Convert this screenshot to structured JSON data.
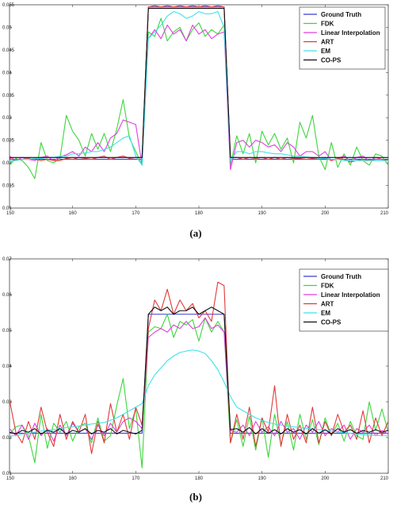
{
  "chart_data": [
    {
      "type": "line",
      "caption": "(a)",
      "xlim": [
        150,
        210
      ],
      "ylim": [
        0.01,
        0.055
      ],
      "xticks": [
        "150",
        "160",
        "170",
        "180",
        "190",
        "200",
        "210"
      ],
      "yticks": [
        "0.01",
        "0.015",
        "0.02",
        "0.025",
        "0.03",
        "0.035",
        "0.04",
        "0.045",
        "0.05",
        "0.055"
      ],
      "grid": false,
      "legend_position": "top-right",
      "x": [
        150,
        151,
        152,
        153,
        154,
        155,
        156,
        157,
        158,
        159,
        160,
        161,
        162,
        163,
        164,
        165,
        166,
        167,
        168,
        169,
        170,
        171,
        172,
        173,
        174,
        175,
        176,
        177,
        178,
        179,
        180,
        181,
        182,
        183,
        184,
        185,
        186,
        187,
        188,
        189,
        190,
        191,
        192,
        193,
        194,
        195,
        196,
        197,
        198,
        199,
        200,
        201,
        202,
        203,
        204,
        205,
        206,
        207,
        208,
        209,
        210
      ],
      "series": [
        {
          "name": "Ground Truth",
          "color": "#3b3bd6",
          "values": [
            0.0208,
            0.0208,
            0.0208,
            0.0208,
            0.0208,
            0.0208,
            0.0208,
            0.0208,
            0.0208,
            0.0208,
            0.0208,
            0.0208,
            0.0208,
            0.0208,
            0.0208,
            0.0208,
            0.0208,
            0.0208,
            0.0208,
            0.0208,
            0.0208,
            0.0208,
            0.0545,
            0.0545,
            0.0545,
            0.0545,
            0.0545,
            0.0545,
            0.0545,
            0.0545,
            0.0545,
            0.0545,
            0.0545,
            0.0545,
            0.0545,
            0.0208,
            0.0208,
            0.0208,
            0.0208,
            0.0208,
            0.0208,
            0.0208,
            0.0208,
            0.0208,
            0.0208,
            0.0208,
            0.0208,
            0.0208,
            0.0208,
            0.0208,
            0.0208,
            0.0208,
            0.0208,
            0.0208,
            0.0208,
            0.0208,
            0.0208,
            0.0208,
            0.0208,
            0.0208,
            0.0208
          ]
        },
        {
          "name": "FDK",
          "color": "#3cd63c",
          "values": [
            0.0195,
            0.021,
            0.0205,
            0.019,
            0.0165,
            0.0245,
            0.0205,
            0.02,
            0.021,
            0.0305,
            0.027,
            0.025,
            0.0215,
            0.0265,
            0.023,
            0.0265,
            0.0225,
            0.0275,
            0.034,
            0.0255,
            0.0225,
            0.0195,
            0.049,
            0.048,
            0.052,
            0.047,
            0.049,
            0.05,
            0.047,
            0.0495,
            0.051,
            0.048,
            0.0495,
            0.0485,
            0.0505,
            0.0195,
            0.026,
            0.022,
            0.0265,
            0.02,
            0.027,
            0.024,
            0.0265,
            0.023,
            0.0255,
            0.02,
            0.029,
            0.0255,
            0.0305,
            0.0215,
            0.0185,
            0.0245,
            0.019,
            0.022,
            0.0195,
            0.0235,
            0.0205,
            0.0195,
            0.022,
            0.0215,
            0.0195
          ]
        },
        {
          "name": "Linear Interpolation",
          "color": "#e040e0",
          "values": [
            0.0215,
            0.0205,
            0.0212,
            0.0208,
            0.0205,
            0.0212,
            0.0215,
            0.0205,
            0.0213,
            0.0218,
            0.0225,
            0.0215,
            0.0235,
            0.0225,
            0.0245,
            0.0225,
            0.0255,
            0.0265,
            0.0295,
            0.029,
            0.0285,
            0.0195,
            0.0475,
            0.0495,
            0.0475,
            0.0505,
            0.0485,
            0.0495,
            0.047,
            0.0505,
            0.0485,
            0.0495,
            0.0475,
            0.0485,
            0.049,
            0.0185,
            0.0245,
            0.025,
            0.0235,
            0.025,
            0.0245,
            0.0235,
            0.024,
            0.0225,
            0.0245,
            0.0235,
            0.0215,
            0.0225,
            0.0225,
            0.0215,
            0.0225,
            0.0205,
            0.021,
            0.0215,
            0.0205,
            0.0212,
            0.0215,
            0.0205,
            0.0212,
            0.0208,
            0.0205
          ]
        },
        {
          "name": "ART",
          "color": "#e03a3a",
          "values": [
            0.021,
            0.0205,
            0.0208,
            0.021,
            0.0208,
            0.0205,
            0.0208,
            0.0205,
            0.0205,
            0.021,
            0.0208,
            0.0212,
            0.021,
            0.0208,
            0.0212,
            0.0215,
            0.0208,
            0.0212,
            0.0215,
            0.021,
            0.0212,
            0.0212,
            0.0545,
            0.0548,
            0.0545,
            0.0548,
            0.0545,
            0.0548,
            0.0545,
            0.0548,
            0.0545,
            0.0548,
            0.0545,
            0.0548,
            0.0545,
            0.0212,
            0.0212,
            0.0208,
            0.0212,
            0.021,
            0.0212,
            0.0208,
            0.0212,
            0.0208,
            0.0212,
            0.021,
            0.021,
            0.0208,
            0.021,
            0.0208,
            0.0212,
            0.0205,
            0.021,
            0.0208,
            0.0202,
            0.0205,
            0.0208,
            0.0205,
            0.0208,
            0.0208,
            0.0205
          ]
        },
        {
          "name": "EM",
          "color": "#3ee3e8",
          "values": [
            0.0205,
            0.0205,
            0.0208,
            0.0208,
            0.021,
            0.021,
            0.0212,
            0.0212,
            0.0215,
            0.0215,
            0.022,
            0.022,
            0.0222,
            0.0225,
            0.0225,
            0.023,
            0.0235,
            0.0245,
            0.0255,
            0.026,
            0.0215,
            0.0195,
            0.0475,
            0.049,
            0.0505,
            0.0525,
            0.0535,
            0.053,
            0.052,
            0.0525,
            0.0535,
            0.053,
            0.053,
            0.0535,
            0.05,
            0.0205,
            0.0225,
            0.0225,
            0.022,
            0.0225,
            0.0225,
            0.0222,
            0.022,
            0.022,
            0.0218,
            0.0215,
            0.0215,
            0.0213,
            0.0212,
            0.021,
            0.021,
            0.0208,
            0.0208,
            0.0205,
            0.0205,
            0.0205,
            0.0205,
            0.0205,
            0.0205,
            0.0205,
            0.0205
          ]
        },
        {
          "name": "CO-PS",
          "color": "#111111",
          "values": [
            0.0212,
            0.0212,
            0.0212,
            0.0212,
            0.0212,
            0.0212,
            0.0212,
            0.0212,
            0.0212,
            0.0212,
            0.0212,
            0.0212,
            0.0212,
            0.0212,
            0.0212,
            0.0212,
            0.0212,
            0.0212,
            0.0212,
            0.0212,
            0.0212,
            0.0212,
            0.0542,
            0.0542,
            0.0542,
            0.0542,
            0.0542,
            0.0542,
            0.0542,
            0.0542,
            0.0542,
            0.0542,
            0.0542,
            0.0542,
            0.0542,
            0.0212,
            0.0212,
            0.0212,
            0.0212,
            0.0212,
            0.0212,
            0.0212,
            0.0212,
            0.0212,
            0.0212,
            0.0212,
            0.0212,
            0.0212,
            0.0212,
            0.0212,
            0.0212,
            0.0212,
            0.0212,
            0.0212,
            0.0212,
            0.0212,
            0.0212,
            0.0212,
            0.0212,
            0.0212,
            0.0212
          ]
        }
      ]
    },
    {
      "type": "line",
      "caption": "(b)",
      "xlim": [
        150,
        210
      ],
      "ylim": [
        0.01,
        0.07
      ],
      "xticks": [
        "150",
        "160",
        "170",
        "180",
        "190",
        "200",
        "210"
      ],
      "yticks": [
        "0.01",
        "0.02",
        "0.03",
        "0.04",
        "0.05",
        "0.06",
        "0.07"
      ],
      "grid": false,
      "legend_position": "top-right",
      "x": [
        150,
        151,
        152,
        153,
        154,
        155,
        156,
        157,
        158,
        159,
        160,
        161,
        162,
        163,
        164,
        165,
        166,
        167,
        168,
        169,
        170,
        171,
        172,
        173,
        174,
        175,
        176,
        177,
        178,
        179,
        180,
        181,
        182,
        183,
        184,
        185,
        186,
        187,
        188,
        189,
        190,
        191,
        192,
        193,
        194,
        195,
        196,
        197,
        198,
        199,
        200,
        201,
        202,
        203,
        204,
        205,
        206,
        207,
        208,
        209,
        210
      ],
      "series": [
        {
          "name": "Ground Truth",
          "color": "#3b3bd6",
          "values": [
            0.0212,
            0.0212,
            0.0212,
            0.0212,
            0.0212,
            0.0212,
            0.0212,
            0.0212,
            0.0212,
            0.0212,
            0.0212,
            0.0212,
            0.0212,
            0.0212,
            0.0212,
            0.0212,
            0.0212,
            0.0212,
            0.0212,
            0.0212,
            0.0212,
            0.0212,
            0.0545,
            0.0545,
            0.0545,
            0.0545,
            0.0545,
            0.0545,
            0.0545,
            0.0545,
            0.0545,
            0.0545,
            0.0545,
            0.0545,
            0.0545,
            0.0212,
            0.0212,
            0.0212,
            0.0212,
            0.0212,
            0.0212,
            0.0212,
            0.0212,
            0.0212,
            0.0212,
            0.0212,
            0.0212,
            0.0212,
            0.0212,
            0.0212,
            0.0212,
            0.0212,
            0.0212,
            0.0212,
            0.0212,
            0.0212,
            0.0212,
            0.0212,
            0.0212,
            0.0212,
            0.0212
          ]
        },
        {
          "name": "FDK",
          "color": "#3cd63c",
          "values": [
            0.021,
            0.023,
            0.0235,
            0.0205,
            0.013,
            0.0265,
            0.017,
            0.024,
            0.0215,
            0.0245,
            0.019,
            0.023,
            0.024,
            0.0185,
            0.0255,
            0.019,
            0.0205,
            0.029,
            0.0365,
            0.0225,
            0.028,
            0.0115,
            0.0495,
            0.051,
            0.0505,
            0.0545,
            0.048,
            0.0525,
            0.0515,
            0.053,
            0.047,
            0.0535,
            0.0495,
            0.0525,
            0.0495,
            0.0185,
            0.025,
            0.0175,
            0.026,
            0.0165,
            0.0255,
            0.0145,
            0.0265,
            0.018,
            0.0245,
            0.0165,
            0.0265,
            0.0195,
            0.025,
            0.018,
            0.0255,
            0.0205,
            0.024,
            0.019,
            0.0245,
            0.0205,
            0.0195,
            0.03,
            0.022,
            0.028,
            0.0215
          ]
        },
        {
          "name": "Linear Interpolation",
          "color": "#e040e0",
          "values": [
            0.0225,
            0.0205,
            0.0235,
            0.0195,
            0.024,
            0.0205,
            0.0225,
            0.019,
            0.0235,
            0.0205,
            0.024,
            0.0215,
            0.0225,
            0.0195,
            0.0235,
            0.0205,
            0.024,
            0.0215,
            0.0245,
            0.0255,
            0.0245,
            0.0225,
            0.048,
            0.0495,
            0.0505,
            0.0495,
            0.0515,
            0.0505,
            0.0525,
            0.0505,
            0.051,
            0.0535,
            0.0505,
            0.0515,
            0.0495,
            0.022,
            0.0215,
            0.0235,
            0.0205,
            0.0245,
            0.0215,
            0.023,
            0.0205,
            0.0245,
            0.0215,
            0.0225,
            0.0195,
            0.0235,
            0.0215,
            0.0245,
            0.0205,
            0.0225,
            0.0215,
            0.0235,
            0.0195,
            0.0225,
            0.0215,
            0.0235,
            0.0205,
            0.022,
            0.021
          ]
        },
        {
          "name": "ART",
          "color": "#e03a3a",
          "values": [
            0.0305,
            0.0215,
            0.0185,
            0.0245,
            0.0195,
            0.0285,
            0.0215,
            0.0175,
            0.0265,
            0.0195,
            0.0245,
            0.0215,
            0.0265,
            0.0155,
            0.0245,
            0.0185,
            0.0295,
            0.0215,
            0.0265,
            0.0195,
            0.0285,
            0.0235,
            0.0505,
            0.0585,
            0.0555,
            0.0615,
            0.0545,
            0.0585,
            0.0555,
            0.0575,
            0.0535,
            0.0555,
            0.0525,
            0.0635,
            0.0625,
            0.0185,
            0.0265,
            0.0195,
            0.0285,
            0.0175,
            0.0255,
            0.0215,
            0.0345,
            0.0175,
            0.0265,
            0.0195,
            0.0235,
            0.0185,
            0.0285,
            0.0185,
            0.0245,
            0.0205,
            0.0265,
            0.0215,
            0.0235,
            0.0195,
            0.0275,
            0.0185,
            0.0255,
            0.0205,
            0.0245
          ]
        },
        {
          "name": "EM",
          "color": "#3ee3e8",
          "values": [
            0.0205,
            0.0205,
            0.021,
            0.0212,
            0.0215,
            0.0218,
            0.022,
            0.0222,
            0.0225,
            0.0228,
            0.023,
            0.0232,
            0.0235,
            0.0238,
            0.024,
            0.0242,
            0.0248,
            0.0255,
            0.0265,
            0.0275,
            0.0285,
            0.0295,
            0.0345,
            0.0375,
            0.0395,
            0.0415,
            0.0428,
            0.0438,
            0.0442,
            0.0445,
            0.0442,
            0.0435,
            0.0415,
            0.039,
            0.0355,
            0.0315,
            0.0285,
            0.0275,
            0.0265,
            0.0255,
            0.0248,
            0.0242,
            0.0238,
            0.0235,
            0.0232,
            0.023,
            0.0228,
            0.0226,
            0.0224,
            0.0222,
            0.022,
            0.0218,
            0.0216,
            0.0214,
            0.0212,
            0.021,
            0.0208,
            0.0207,
            0.0206,
            0.0205,
            0.0205
          ]
        },
        {
          "name": "CO-PS",
          "color": "#111111",
          "values": [
            0.0215,
            0.021,
            0.022,
            0.0215,
            0.0225,
            0.021,
            0.022,
            0.0215,
            0.0225,
            0.021,
            0.022,
            0.0215,
            0.0225,
            0.021,
            0.022,
            0.0215,
            0.0225,
            0.021,
            0.022,
            0.0215,
            0.021,
            0.022,
            0.0545,
            0.0565,
            0.0555,
            0.0565,
            0.0545,
            0.0555,
            0.0555,
            0.0565,
            0.0545,
            0.0555,
            0.0565,
            0.0555,
            0.0545,
            0.0222,
            0.0225,
            0.0215,
            0.0228,
            0.021,
            0.0225,
            0.0212,
            0.0222,
            0.021,
            0.0225,
            0.0215,
            0.0222,
            0.021,
            0.0225,
            0.0212,
            0.0222,
            0.021,
            0.0225,
            0.0215,
            0.0222,
            0.0212,
            0.022,
            0.0215,
            0.0222,
            0.0215,
            0.022
          ]
        }
      ]
    }
  ]
}
